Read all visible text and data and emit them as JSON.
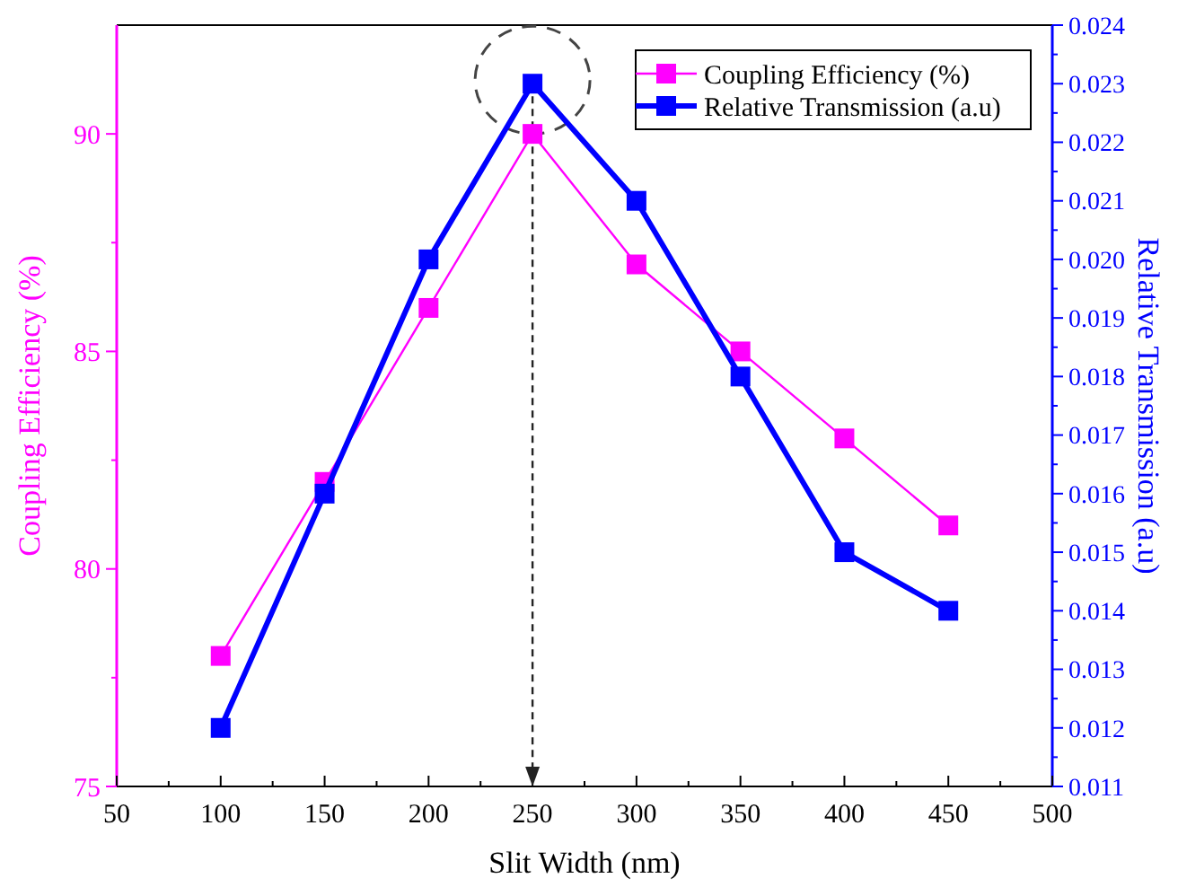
{
  "chart_data": {
    "type": "line",
    "xlabel": "Slit Width (nm)",
    "ylabel": "Coupling Efficiency (%)",
    "y2label": "Relative Transmission (a.u)",
    "x": [
      100,
      150,
      200,
      250,
      300,
      350,
      400,
      450
    ],
    "xlim": [
      50,
      500
    ],
    "xticks": [
      50,
      100,
      150,
      200,
      250,
      300,
      350,
      400,
      450,
      500
    ],
    "ylim": [
      75,
      92.5
    ],
    "yticks": [
      75,
      80,
      85,
      90
    ],
    "y2lim": [
      0.011,
      0.024
    ],
    "y2ticks": [
      {
        "value": 0.011,
        "label": "0.011"
      },
      {
        "value": 0.012,
        "label": "0.012"
      },
      {
        "value": 0.013,
        "label": "0.013"
      },
      {
        "value": 0.014,
        "label": "0.014"
      },
      {
        "value": 0.015,
        "label": "0.015"
      },
      {
        "value": 0.016,
        "label": "0.016"
      },
      {
        "value": 0.017,
        "label": "0.017"
      },
      {
        "value": 0.018,
        "label": "0.018"
      },
      {
        "value": 0.019,
        "label": "0.019"
      },
      {
        "value": 0.02,
        "label": "0.020"
      },
      {
        "value": 0.021,
        "label": "0.021"
      },
      {
        "value": 0.022,
        "label": "0.022"
      },
      {
        "value": 0.023,
        "label": "0.023"
      },
      {
        "value": 0.024,
        "label": "0.024"
      }
    ],
    "series": [
      {
        "name": "Coupling Efficiency (%)",
        "color": "#ff00ff",
        "values": [
          78,
          82,
          86,
          90,
          87,
          85,
          83,
          81
        ]
      },
      {
        "name": "Relative Transmission (a.u)",
        "color": "#0000ff",
        "axis": "y2",
        "values": [
          0.012,
          0.016,
          0.02,
          0.023,
          0.021,
          0.018,
          0.015,
          0.014
        ]
      }
    ],
    "ref_lines": [
      {
        "axis": "x",
        "value": 250,
        "line_style": "dashed",
        "color": "#222222"
      }
    ],
    "marker": "square",
    "legend": "top right",
    "grid": false
  }
}
